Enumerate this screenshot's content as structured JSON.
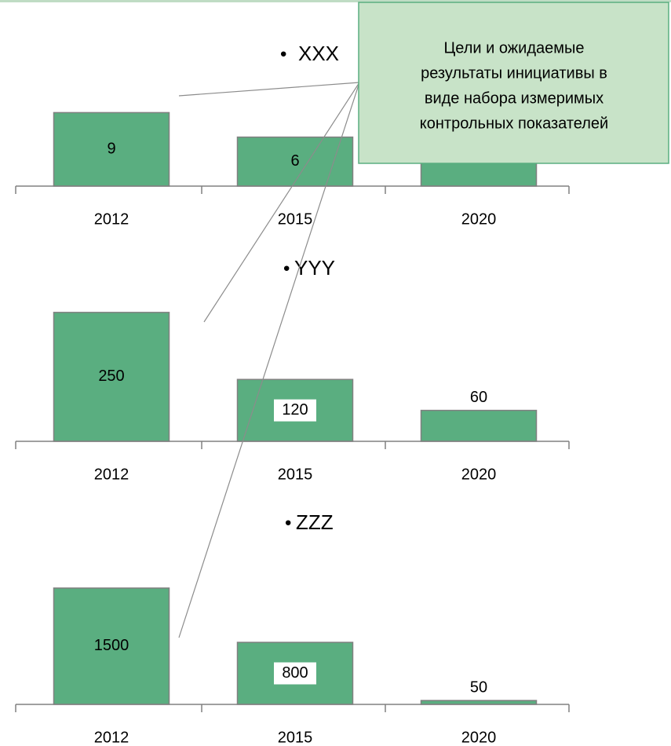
{
  "chart_data": [
    {
      "type": "bar",
      "title": "XXX",
      "categories": [
        "2012",
        "2015",
        "2020"
      ],
      "values": [
        9,
        6,
        4
      ],
      "color": "#5aae80",
      "ylim": [
        0,
        10
      ]
    },
    {
      "type": "bar",
      "title": "YYY",
      "categories": [
        "2012",
        "2015",
        "2020"
      ],
      "values": [
        250,
        120,
        60
      ],
      "color": "#5aae80",
      "ylim": [
        0,
        300
      ]
    },
    {
      "type": "bar",
      "title": "ZZZ",
      "categories": [
        "2012",
        "2015",
        "2020"
      ],
      "values": [
        1500,
        800,
        50
      ],
      "color": "#5aae80",
      "ylim": [
        0,
        1600
      ]
    }
  ],
  "callout": {
    "lines": [
      "Цели и ожидаемые",
      "результаты инициативы  в",
      "виде набора  измеримых",
      "контрольных показателей"
    ]
  }
}
